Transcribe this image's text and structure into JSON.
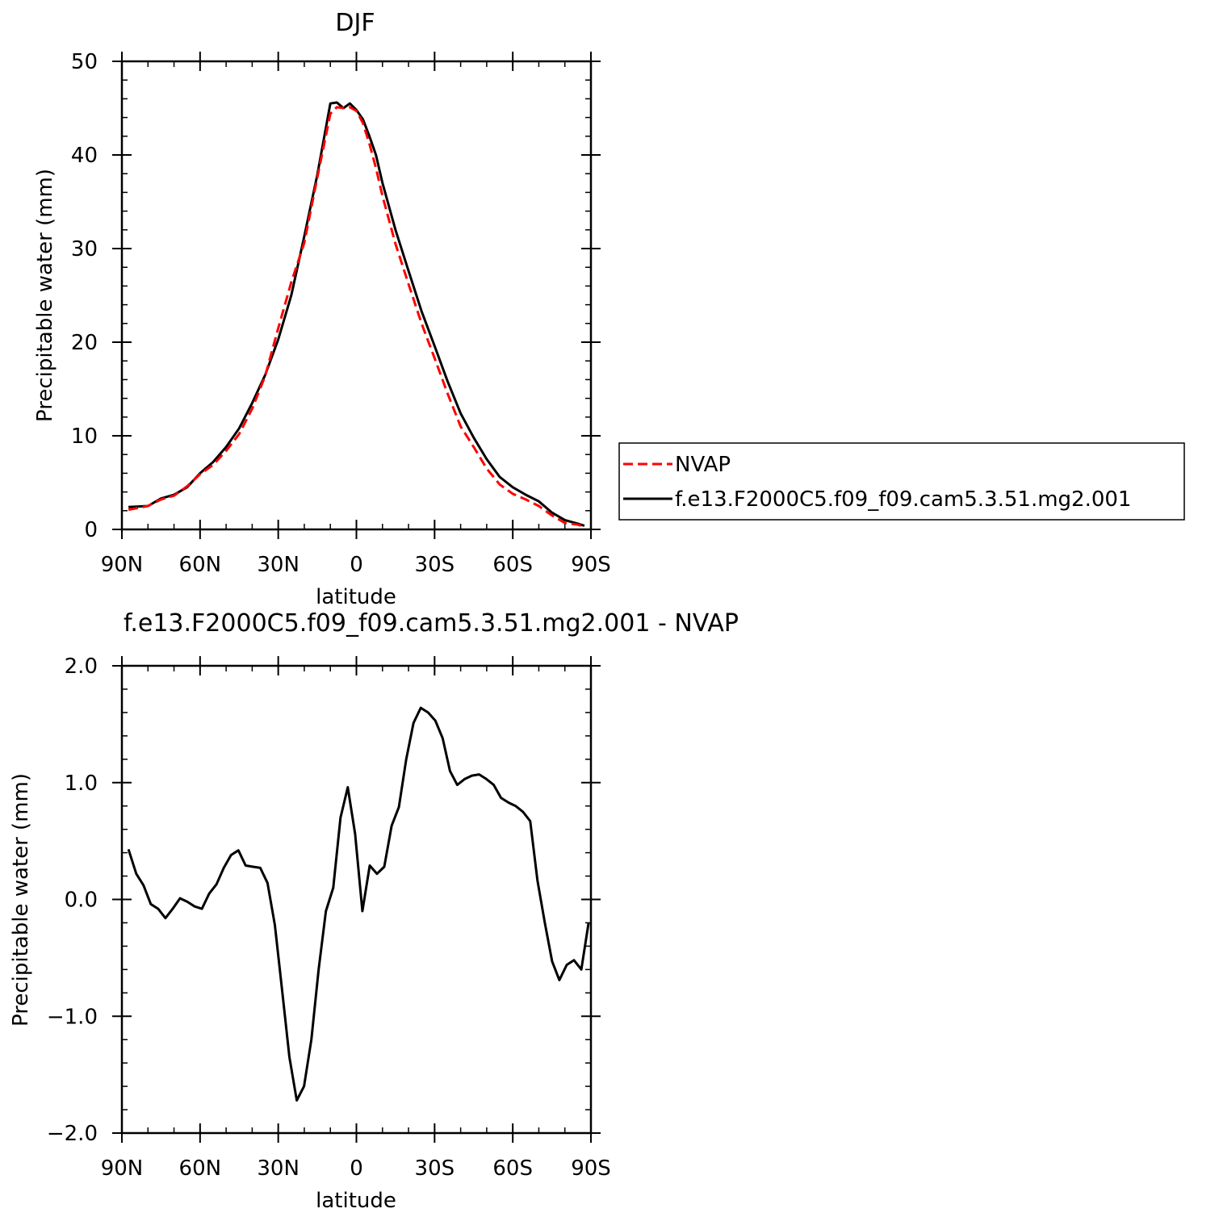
{
  "chart_data": [
    {
      "type": "line",
      "title": "DJF",
      "xlabel": "latitude",
      "ylabel": "Precipitable water (mm)",
      "xlim": [
        90,
        -90
      ],
      "ylim": [
        0,
        50
      ],
      "x_ticks": [
        90,
        60,
        30,
        0,
        -30,
        -60,
        -90
      ],
      "x_tick_labels": [
        "90N",
        "60N",
        "30N",
        "0",
        "30S",
        "60S",
        "90S"
      ],
      "y_ticks": [
        0,
        10,
        20,
        30,
        40,
        50
      ],
      "y_tick_labels": [
        "0",
        "10",
        "20",
        "30",
        "40",
        "50"
      ],
      "legend_position": "right",
      "series": [
        {
          "name": "NVAP",
          "color": "#ff0000",
          "dash": "dashed",
          "x": [
            87.5,
            80,
            75,
            70,
            65,
            60,
            55,
            50,
            45,
            40,
            35,
            30,
            25,
            20,
            15,
            10,
            7.5,
            5,
            2.5,
            0,
            -2.5,
            -5,
            -7.5,
            -10,
            -15,
            -20,
            -25,
            -30,
            -35,
            -40,
            -45,
            -50,
            -55,
            -60,
            -65,
            -70,
            -75,
            -80,
            -85,
            -87.5
          ],
          "y": [
            2.1,
            2.5,
            3.2,
            3.6,
            4.6,
            5.9,
            6.9,
            8.4,
            10.2,
            12.9,
            16.4,
            21.5,
            26.4,
            30.6,
            37.6,
            44.4,
            45.1,
            45.0,
            45.1,
            44.7,
            43.4,
            41.2,
            38.6,
            35.6,
            30.5,
            26.2,
            22.0,
            18.3,
            14.5,
            11.0,
            8.8,
            6.5,
            4.8,
            3.8,
            3.2,
            2.5,
            1.5,
            0.7,
            0.5,
            0.3
          ]
        },
        {
          "name": "f.e13.F2000C5.f09_f09.cam5.3.51.mg2.001",
          "color": "#000000",
          "dash": "solid",
          "x": [
            87.5,
            80,
            75,
            70,
            65,
            60,
            55,
            50,
            45,
            40,
            35,
            30,
            25,
            20,
            15,
            10,
            7.5,
            5,
            2.5,
            0,
            -2.5,
            -5,
            -7.5,
            -10,
            -15,
            -20,
            -25,
            -30,
            -35,
            -40,
            -45,
            -50,
            -55,
            -60,
            -65,
            -70,
            -75,
            -80,
            -85,
            -87.5
          ],
          "y": [
            2.4,
            2.5,
            3.3,
            3.7,
            4.5,
            6.0,
            7.2,
            8.8,
            10.8,
            13.5,
            16.5,
            20.3,
            25.0,
            31.3,
            37.9,
            45.5,
            45.6,
            45.0,
            45.5,
            44.8,
            43.8,
            42.0,
            40.0,
            37.0,
            32.0,
            27.6,
            23.3,
            19.6,
            15.8,
            12.4,
            9.8,
            7.5,
            5.6,
            4.5,
            3.7,
            3.0,
            1.8,
            1.0,
            0.6,
            0.4
          ]
        }
      ]
    },
    {
      "type": "line",
      "title": "f.e13.F2000C5.f09_f09.cam5.3.51.mg2.001  - NVAP",
      "xlabel": "latitude",
      "ylabel": "Precipitable water (mm)",
      "xlim": [
        90,
        -90
      ],
      "ylim": [
        -2.0,
        2.0
      ],
      "x_ticks": [
        90,
        60,
        30,
        0,
        -30,
        -60,
        -90
      ],
      "x_tick_labels": [
        "90N",
        "60N",
        "30N",
        "0",
        "30S",
        "60S",
        "90S"
      ],
      "y_ticks": [
        -2.0,
        -1.0,
        0.0,
        1.0,
        2.0
      ],
      "y_tick_labels": [
        "-2.0",
        "-1.0",
        "0.0",
        "1.0",
        "2.0"
      ],
      "series": [
        {
          "color": "#000000",
          "dash": "solid",
          "x": [
            87.5,
            84.5,
            81.7,
            78.9,
            76.1,
            73.3,
            70.5,
            67.7,
            64.9,
            62.1,
            59.3,
            56.5,
            53.7,
            50.9,
            48.1,
            45.3,
            42.5,
            39.7,
            36.9,
            34.1,
            31.3,
            28.5,
            25.7,
            22.9,
            20.1,
            17.3,
            14.5,
            11.7,
            8.9,
            6.1,
            3.3,
            0.5,
            -2.3,
            -5.1,
            -7.9,
            -10.7,
            -13.5,
            -16.3,
            -19.1,
            -21.9,
            -24.7,
            -27.5,
            -30.3,
            -33.1,
            -35.9,
            -38.7,
            -41.5,
            -44.3,
            -47.1,
            -49.9,
            -52.7,
            -55.5,
            -58.3,
            -61.1,
            -63.9,
            -66.7,
            -69.5,
            -72.3,
            -75.1,
            -77.9,
            -80.7,
            -83.5,
            -86.3,
            -89.1
          ],
          "y": [
            0.43,
            0.22,
            0.12,
            -0.04,
            -0.08,
            -0.16,
            -0.08,
            0.01,
            -0.02,
            -0.06,
            -0.08,
            0.05,
            0.13,
            0.27,
            0.38,
            0.42,
            0.29,
            0.28,
            0.27,
            0.14,
            -0.22,
            -0.78,
            -1.35,
            -1.72,
            -1.6,
            -1.2,
            -0.6,
            -0.1,
            0.1,
            0.7,
            0.96,
            0.56,
            -0.1,
            0.29,
            0.22,
            0.28,
            0.63,
            0.79,
            1.2,
            1.51,
            1.64,
            1.6,
            1.53,
            1.38,
            1.1,
            0.98,
            1.03,
            1.06,
            1.07,
            1.03,
            0.98,
            0.87,
            0.83,
            0.8,
            0.75,
            0.67,
            0.16,
            -0.2,
            -0.53,
            -0.69,
            -0.56,
            -0.52,
            -0.6,
            -0.2
          ]
        }
      ]
    }
  ]
}
